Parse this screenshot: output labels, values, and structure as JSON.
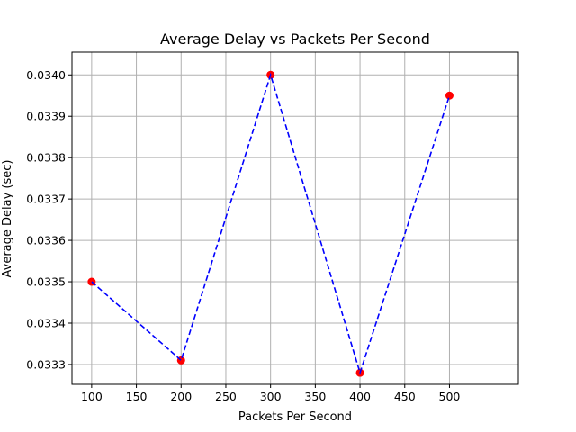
{
  "chart_data": {
    "type": "scatter",
    "title": "Average Delay vs Packets Per Second",
    "xlabel": "Packets Per Second",
    "ylabel": "Average Delay (sec)",
    "xlim": [
      78,
      577
    ],
    "ylim": [
      0.033252,
      0.034055
    ],
    "x_ticks": [
      100,
      150,
      200,
      250,
      300,
      350,
      400,
      450,
      500
    ],
    "x_tick_labels": [
      "100",
      "150",
      "200",
      "250",
      "300",
      "350",
      "400",
      "450",
      "500"
    ],
    "y_ticks": [
      0.0333,
      0.0334,
      0.0335,
      0.0336,
      0.0337,
      0.0338,
      0.0339,
      0.034
    ],
    "y_tick_labels": [
      "0.0333",
      "0.0334",
      "0.0335",
      "0.0336",
      "0.0337",
      "0.0338",
      "0.0339",
      "0.0340"
    ],
    "grid": true,
    "series": [
      {
        "x": [
          100,
          200,
          300,
          400,
          500
        ],
        "y": [
          0.0335,
          0.03331,
          0.034,
          0.03328,
          0.03395
        ],
        "marker_color": "#ff0000",
        "line_color": "#0000ff",
        "line_style": "dashed"
      }
    ]
  }
}
